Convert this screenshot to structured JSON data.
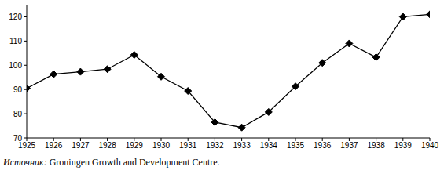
{
  "chart_data": {
    "type": "line",
    "x": [
      1925,
      1926,
      1927,
      1928,
      1929,
      1930,
      1931,
      1932,
      1933,
      1934,
      1935,
      1936,
      1937,
      1938,
      1939,
      1940
    ],
    "values": [
      90.5,
      96.3,
      97.3,
      98.4,
      104.3,
      95.3,
      89.4,
      76.5,
      74.3,
      80.7,
      91.3,
      101,
      109,
      103.3,
      120,
      121
    ],
    "color": "#000000",
    "marker": "diamond",
    "line_style": "solid",
    "xlim": [
      1925,
      1940
    ],
    "xticks": [
      1925,
      1926,
      1927,
      1928,
      1929,
      1930,
      1931,
      1932,
      1933,
      1934,
      1935,
      1936,
      1937,
      1938,
      1939,
      1940
    ],
    "ylim": [
      70,
      125
    ],
    "yticks": [
      70,
      80,
      90,
      100,
      110,
      120
    ],
    "grid": false,
    "source_label": "Источник:",
    "source": "Groningen Growth and Development Centre."
  }
}
